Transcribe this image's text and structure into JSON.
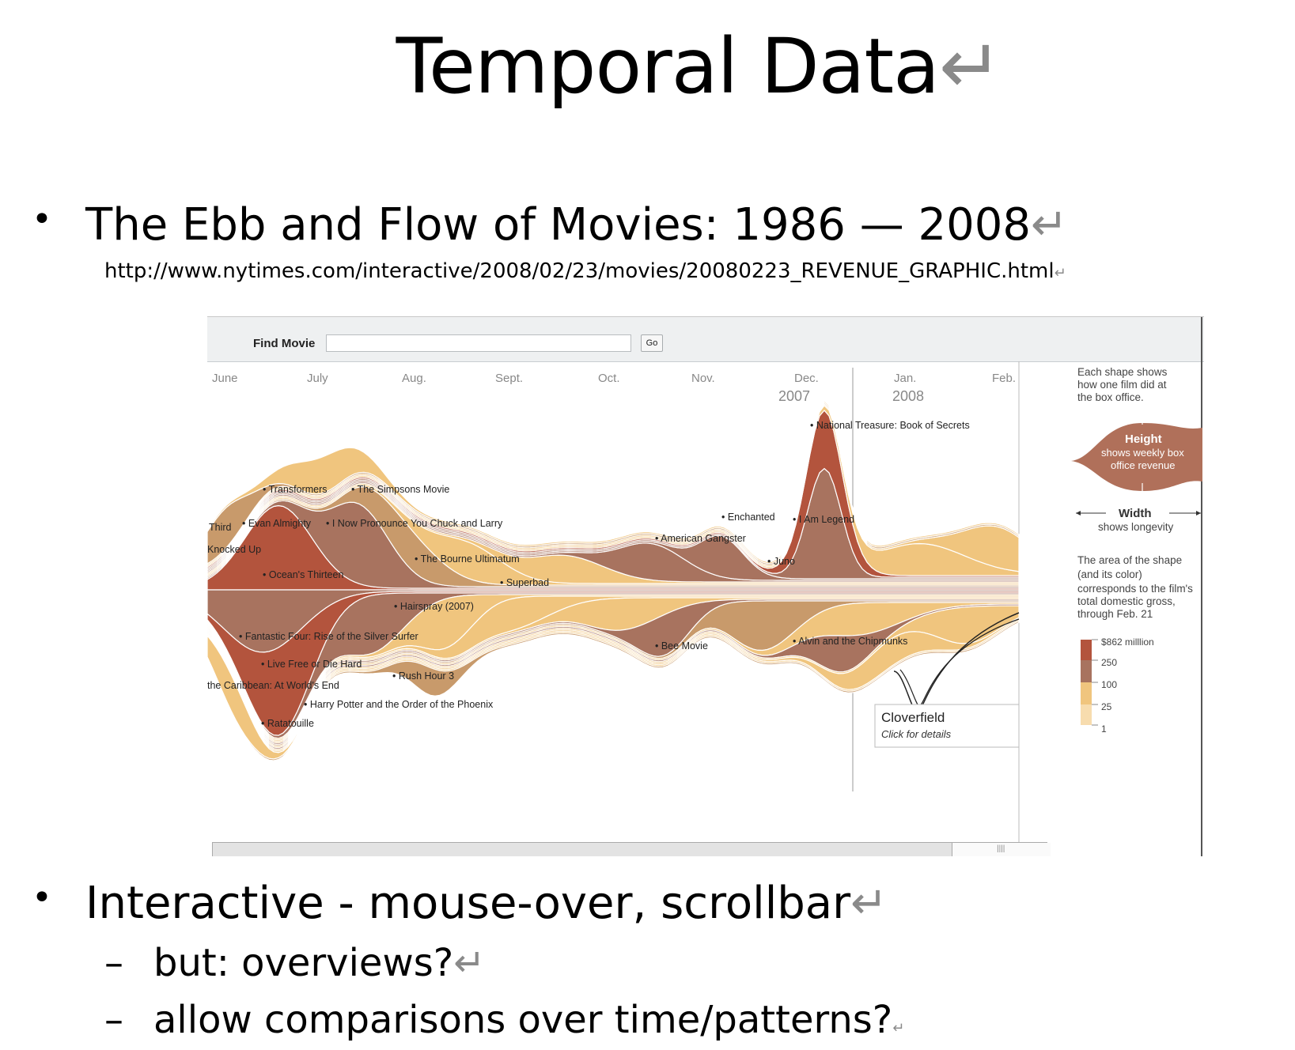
{
  "slide": {
    "title": "Temporal Data",
    "bullet1": "The Ebb and Flow of Movies: 1986 — 2008",
    "url": "http://www.nytimes.com/interactive/2008/02/23/movies/20080223_REVENUE_GRAPHIC.html",
    "bullet2": "Interactive - mouse-over, scrollbar",
    "sub1": "but: overviews?",
    "sub2": "allow comparisons over time/patterns?"
  },
  "app": {
    "find_label": "Find Movie",
    "find_value": "",
    "go_label": "Go",
    "months": [
      "June",
      "July",
      "Aug.",
      "Sept.",
      "Oct.",
      "Nov.",
      "Dec.",
      "Jan.",
      "Feb."
    ],
    "years": [
      "2007",
      "2008"
    ],
    "tooltip": {
      "title": "Cloverfield",
      "hint": "Click for details"
    }
  },
  "legend": {
    "intro": [
      "Each shape shows",
      "how one film did at",
      "the box office."
    ],
    "height_title": "Height",
    "height_desc": [
      "shows weekly box",
      "office revenue"
    ],
    "width_title": "Width",
    "width_desc": "shows longevity",
    "area_text": [
      "The area of the shape",
      "(and its color)",
      "corresponds to the film's",
      "total domestic gross,",
      "through Feb. 21"
    ],
    "scale": [
      "$862 milllion",
      "250",
      "100",
      "25",
      "1"
    ]
  },
  "colors": {
    "dark_red": "#b3543d",
    "brown": "#a8735f",
    "tan": "#c89a6b",
    "light_orange": "#f0c57e",
    "pale": "#f7dcae"
  },
  "chart_data": {
    "type": "area",
    "title": "",
    "x": [
      "June",
      "July",
      "Aug.",
      "Sept.",
      "Oct.",
      "Nov.",
      "Dec.",
      "Jan.",
      "Feb."
    ],
    "movies": [
      "Third",
      "Knocked Up",
      "Transformers",
      "Evan Almighty",
      "Ocean's Thirteen",
      "The Simpsons Movie",
      "I Now Pronounce You Chuck and Larry",
      "The Bourne Ultimatum",
      "Superbad",
      "Hairspray (2007)",
      "Fantastic Four: Rise of the Silver Surfer",
      "Live Free or Die Hard",
      "the Caribbean: At World's End",
      "Rush Hour 3",
      "Harry Potter and the Order of the Phoenix",
      "Ratatouille",
      "American Gangster",
      "Enchanted",
      "I Am Legend",
      "Juno",
      "National Treasure: Book of Secrets",
      "Bee Movie",
      "Alvin and the Chipmunks"
    ]
  }
}
